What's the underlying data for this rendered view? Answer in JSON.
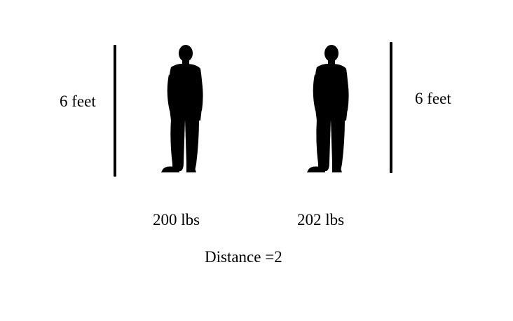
{
  "left_person": {
    "height_label": "6 feet",
    "weight_label": "200 lbs",
    "icon": "person-silhouette-icon"
  },
  "right_person": {
    "height_label": "6 feet",
    "weight_label": "202 lbs",
    "icon": "person-silhouette-icon"
  },
  "distance_label": "Distance =2",
  "colors": {
    "silhouette": "#000000",
    "background": "#ffffff"
  }
}
